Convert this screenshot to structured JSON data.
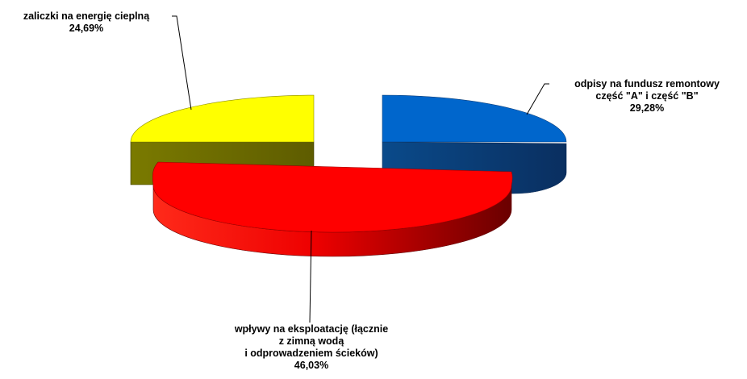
{
  "chart_data": {
    "type": "pie",
    "style": "3d-exploded",
    "title": "",
    "legend": "none",
    "slices": [
      {
        "label_lines": [
          "odpisy na fundusz remontowy",
          "część \"A\" i część \"B\""
        ],
        "value_label": "29,28%",
        "value": 29.28,
        "color": "#0066cc"
      },
      {
        "label_lines": [
          "wpływy na eksploatację (łącznie",
          "z zimną wodą",
          "i odprowadzeniem ścieków)"
        ],
        "value_label": "46,03%",
        "value": 46.03,
        "color": "#ff0000"
      },
      {
        "label_lines": [
          "zaliczki na energię cieplną"
        ],
        "value_label": "24,69%",
        "value": 24.69,
        "color": "#ffff00"
      }
    ]
  }
}
